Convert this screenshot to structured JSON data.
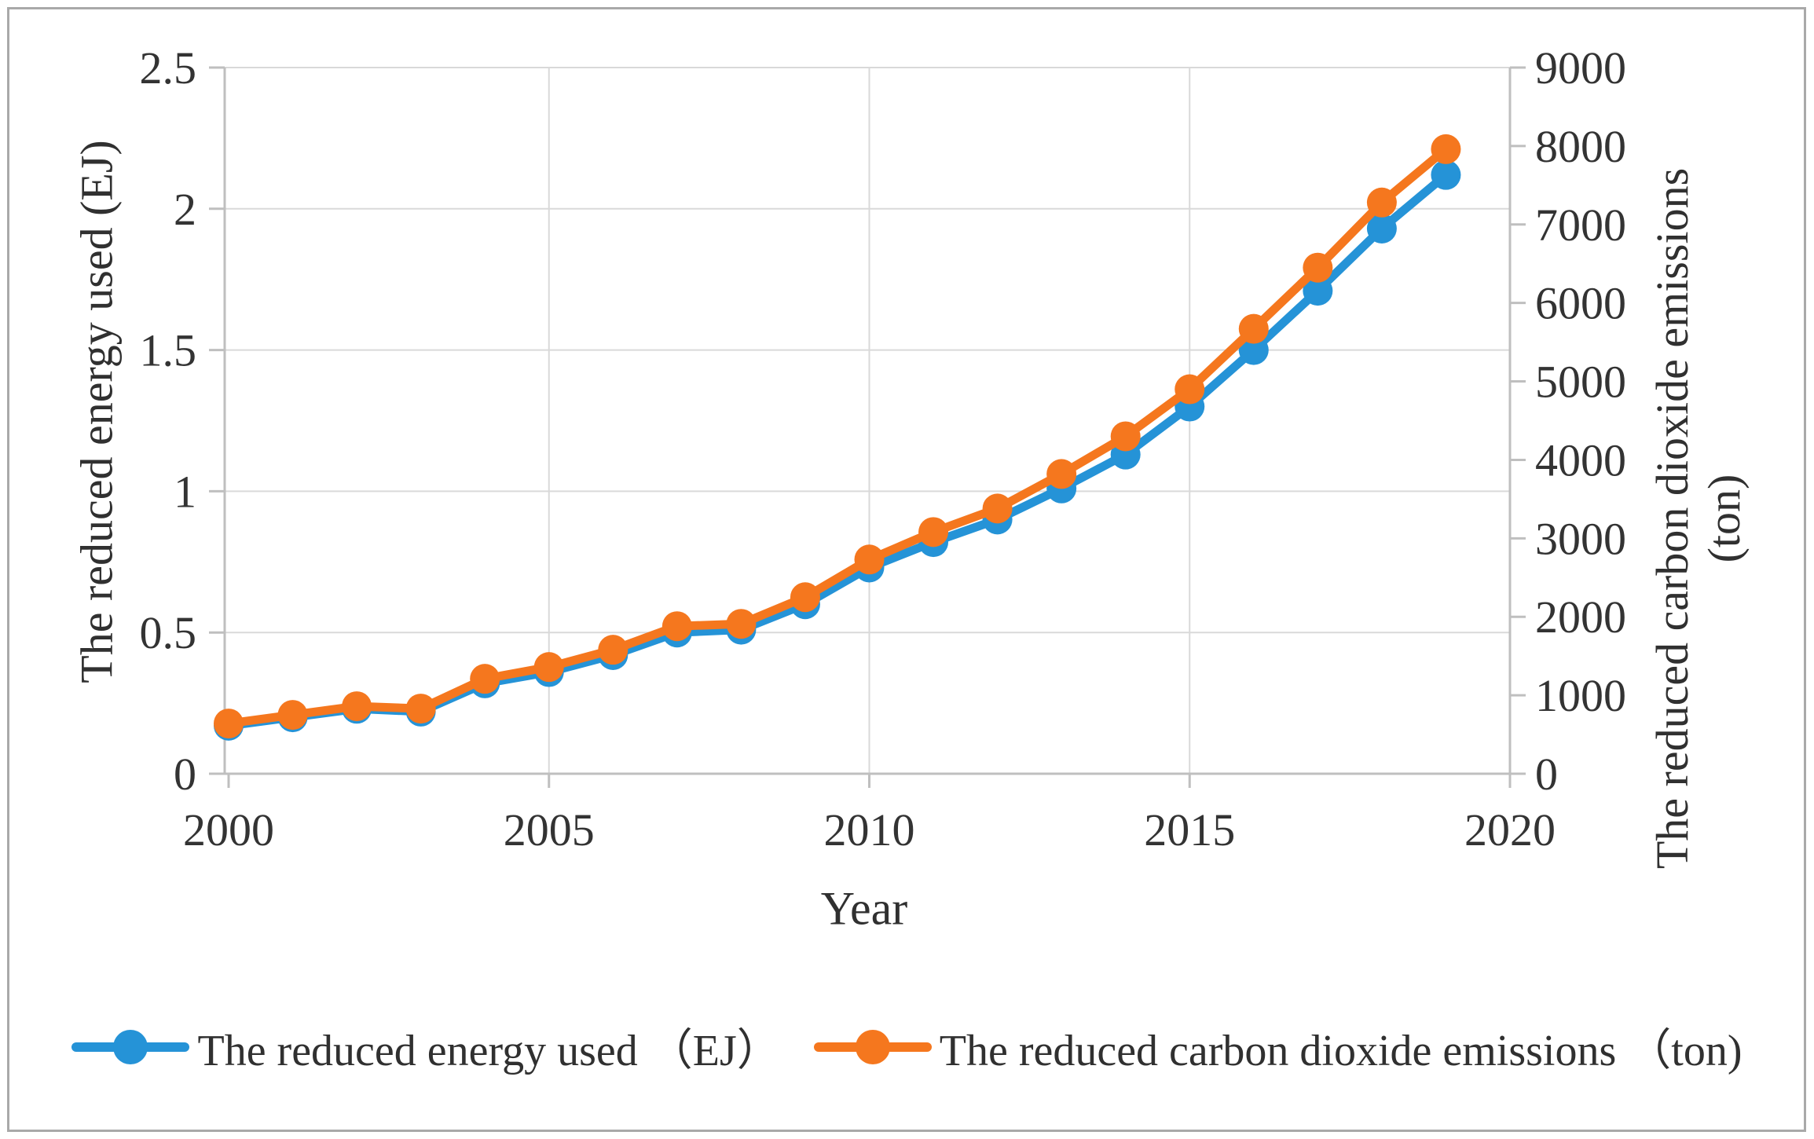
{
  "figure": {
    "background": "#ffffff",
    "border_color": "#a9a9a9"
  },
  "chart_data": {
    "type": "line",
    "title": "",
    "xlabel": "Year",
    "grid": true,
    "legend_position": "bottom",
    "x": [
      2000,
      2001,
      2002,
      2003,
      2004,
      2005,
      2006,
      2007,
      2008,
      2009,
      2010,
      2011,
      2012,
      2013,
      2014,
      2015,
      2016,
      2017,
      2018,
      2019
    ],
    "x_ticks": [
      "2000",
      "2005",
      "2010",
      "2015",
      "2020"
    ],
    "x_range": [
      2000,
      2020
    ],
    "left_axis": {
      "title": "The reduced energy used (EJ)",
      "min": 0,
      "max": 2.5,
      "ticks": [
        "0",
        "0.5",
        "1",
        "1.5",
        "2",
        "2.5"
      ]
    },
    "right_axis": {
      "title": "The reduced carbon dioxide emissions",
      "title_line2": "(ton)",
      "min": 0,
      "max": 9000,
      "ticks": [
        "0",
        "1000",
        "2000",
        "3000",
        "4000",
        "5000",
        "6000",
        "7000",
        "8000",
        "9000"
      ]
    },
    "series": [
      {
        "name": "The reduced energy used （EJ）",
        "axis": "left",
        "color": "#2593D7",
        "values": [
          0.17,
          0.2,
          0.23,
          0.22,
          0.32,
          0.36,
          0.42,
          0.5,
          0.51,
          0.6,
          0.73,
          0.82,
          0.9,
          1.01,
          1.13,
          1.3,
          1.5,
          1.71,
          1.93,
          2.12
        ]
      },
      {
        "name": "The reduced carbon dioxide emissions （ton)",
        "axis": "right",
        "color": "#F5771E",
        "values": [
          640,
          750,
          860,
          830,
          1210,
          1360,
          1580,
          1880,
          1910,
          2250,
          2730,
          3080,
          3380,
          3820,
          4300,
          4900,
          5670,
          6450,
          7280,
          7960
        ]
      }
    ],
    "colors": {
      "gridline": "#d9d9d9",
      "axis_line": "#bfbfbf",
      "tick_text": "#333333"
    }
  }
}
